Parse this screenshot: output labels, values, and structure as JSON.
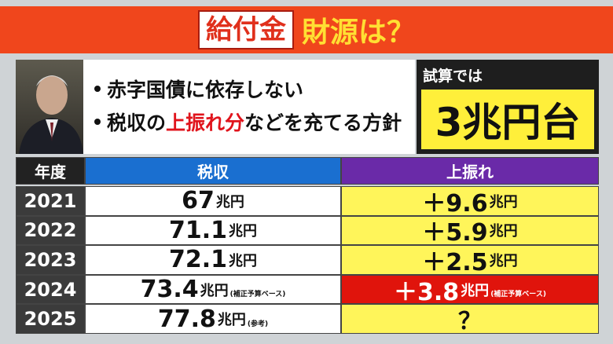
{
  "header": {
    "tag": "給付金",
    "title": "財源は？"
  },
  "bullets": {
    "line1": "赤字国債に依存しない",
    "line2_before": "税収の",
    "line2_highlight": "上振れ分",
    "line2_after": "などを充てる方針"
  },
  "estimate": {
    "label": "試算では",
    "value": "3兆円台"
  },
  "table": {
    "headers": [
      "年度",
      "税収",
      "上振れ"
    ],
    "rows": [
      {
        "year": "2021",
        "revenue": "67",
        "revenue_unit": "兆円",
        "surplus": "＋9.6",
        "surplus_unit": "兆円"
      },
      {
        "year": "2022",
        "revenue": "71.1",
        "revenue_unit": "兆円",
        "surplus": "＋5.9",
        "surplus_unit": "兆円"
      },
      {
        "year": "2023",
        "revenue": "72.1",
        "revenue_unit": "兆円",
        "surplus": "＋2.5",
        "surplus_unit": "兆円"
      },
      {
        "year": "2024",
        "revenue": "73.4",
        "revenue_unit": "兆円",
        "revenue_note": "(補正予算ベース)",
        "surplus": "＋3.8",
        "surplus_unit": "兆円",
        "surplus_note": "(補正予算ベース)"
      },
      {
        "year": "2025",
        "revenue": "77.8",
        "revenue_unit": "兆円",
        "revenue_note": "(参考)",
        "surplus": "？"
      }
    ]
  }
}
